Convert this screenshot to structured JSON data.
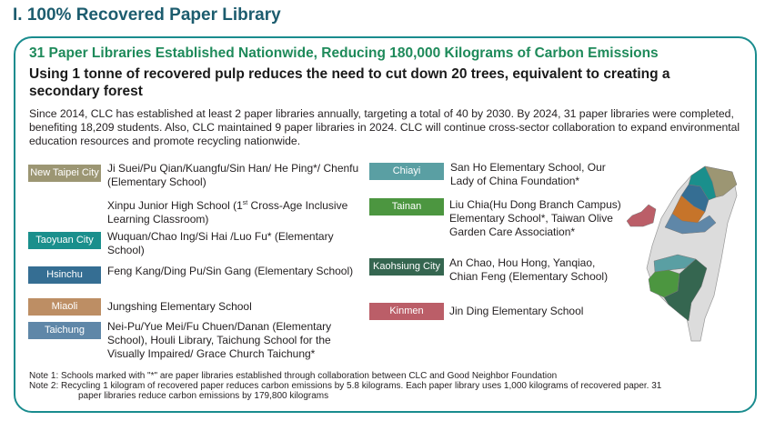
{
  "title": "I. 100% Recovered Paper Library",
  "heading": "31 Paper Libraries Established Nationwide, Reducing 180,000 Kilograms of Carbon Emissions",
  "subheading": "Using 1 tonne of recovered pulp reduces the need to cut down 20 trees, equivalent to creating a secondary forest",
  "intro": "Since 2014, CLC has established at least 2 paper libraries annually, targeting a total of 40 by 2030. By 2024, 31 paper libraries were completed, benefiting 18,209 students. Also, CLC maintained 9 paper libraries in 2024. CLC will continue cross-sector collaboration to expand environmental education resources and promote recycling nationwide.",
  "regions_left": [
    {
      "name": "New Taipei City",
      "color": "#9c9673",
      "schools": "Ji Suei/Pu Qian/Kuangfu/Sin Han/ He Ping*/ Chenfu (Elementary School)"
    },
    {
      "name": "",
      "color": "",
      "schools_pre": "Xinpu Junior High School (1",
      "schools_sup": "st",
      "schools_post": " Cross-Age Inclusive Learning Classroom)"
    },
    {
      "name": "Taoyuan City",
      "color": "#1a8f8c",
      "schools": "Wuquan/Chao Ing/Si Hai /Luo Fu* (Elementary School)"
    },
    {
      "name": "Hsinchu",
      "color": "#356e93",
      "schools": "Feng Kang/Ding Pu/Sin Gang (Elementary School)"
    },
    {
      "name": "Miaoli",
      "color": "#bd8e64",
      "schools": "Jungshing Elementary School"
    },
    {
      "name": "Taichung",
      "color": "#5f87a8",
      "schools": "Nei-Pu/Yue Mei/Fu Chuen/Danan (Elementary School), Houli Library, Taichung School for the Visually Impaired/ Grace Church Taichung*"
    }
  ],
  "regions_right": [
    {
      "name": "Chiayi",
      "color": "#5a9fa3",
      "schools": "San Ho Elementary School, Our Lady of China Foundation*"
    },
    {
      "name": "Tainan",
      "color": "#4c9640",
      "schools": "Liu Chia(Hu Dong Branch Campus) Elementary School*, Taiwan Olive Garden Care Association*"
    },
    {
      "name": "Kaohsiung City",
      "color": "#356650",
      "schools": "An Chao, Hou Hong, Yanqiao, Chian Feng (Elementary School)"
    },
    {
      "name": "Kinmen",
      "color": "#bb5e68",
      "schools": "Jin Ding Elementary School"
    }
  ],
  "map": {
    "base_color": "#dcdcdc",
    "miaoli_map_color": "#c6742a"
  },
  "notes": [
    "Note 1: Schools marked with \"*\" are paper libraries established through collaboration between CLC and Good Neighbor Foundation",
    "Note 2: Recycling 1 kilogram of recovered paper reduces carbon emissions by 5.8 kilograms. Each paper library uses 1,000 kilograms of recovered paper. 31",
    "paper libraries reduce carbon emissions by 179,800 kilograms"
  ]
}
